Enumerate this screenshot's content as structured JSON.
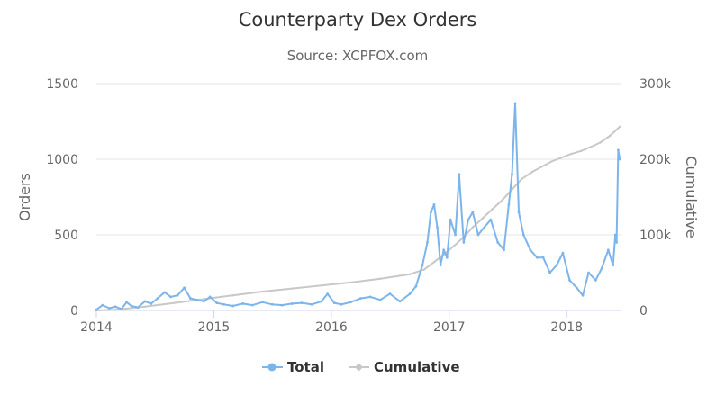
{
  "chart_data": {
    "type": "line",
    "title": "Counterparty Dex Orders",
    "subtitle": "Source: XCPFOX.com",
    "ylabel": "Orders",
    "y2label": "Cumulative",
    "ylim": [
      0,
      1500
    ],
    "y2lim": [
      0,
      300000
    ],
    "xlim": [
      "2014-01-01",
      "2018-06-20"
    ],
    "x_ticks": [
      "2014",
      "2015",
      "2016",
      "2017",
      "2018"
    ],
    "y_ticks": [
      "0",
      "500",
      "1000",
      "1500"
    ],
    "y2_ticks": [
      "0",
      "100k",
      "200k",
      "300k"
    ],
    "grid": true,
    "legend": {
      "position": "bottom-center",
      "items": [
        "Total",
        "Cumulative"
      ]
    },
    "colors": {
      "Total": "#7cb5ec",
      "Cumulative": "#c8c8c8"
    },
    "series": [
      {
        "name": "Total",
        "axis": "left",
        "x": [
          "2014-01-01",
          "2014-01-20",
          "2014-02-10",
          "2014-03-01",
          "2014-03-20",
          "2014-04-05",
          "2014-04-20",
          "2014-05-10",
          "2014-06-01",
          "2014-06-20",
          "2014-07-10",
          "2014-08-01",
          "2014-08-20",
          "2014-09-10",
          "2014-10-01",
          "2014-10-20",
          "2014-11-10",
          "2014-12-01",
          "2014-12-20",
          "2015-01-10",
          "2015-02-01",
          "2015-03-01",
          "2015-04-01",
          "2015-05-01",
          "2015-06-01",
          "2015-07-01",
          "2015-08-01",
          "2015-09-01",
          "2015-10-01",
          "2015-11-01",
          "2015-12-01",
          "2015-12-20",
          "2016-01-10",
          "2016-02-01",
          "2016-03-01",
          "2016-04-01",
          "2016-05-01",
          "2016-06-01",
          "2016-07-01",
          "2016-08-01",
          "2016-09-01",
          "2016-09-20",
          "2016-10-10",
          "2016-10-25",
          "2016-11-05",
          "2016-11-15",
          "2016-11-25",
          "2016-12-05",
          "2016-12-15",
          "2016-12-25",
          "2017-01-05",
          "2017-01-20",
          "2017-02-01",
          "2017-02-15",
          "2017-03-01",
          "2017-03-15",
          "2017-04-01",
          "2017-04-20",
          "2017-05-10",
          "2017-06-01",
          "2017-06-20",
          "2017-07-05",
          "2017-07-15",
          "2017-07-25",
          "2017-08-05",
          "2017-08-20",
          "2017-09-10",
          "2017-10-01",
          "2017-10-20",
          "2017-11-10",
          "2017-12-01",
          "2017-12-20",
          "2018-01-10",
          "2018-02-01",
          "2018-02-20",
          "2018-03-10",
          "2018-04-01",
          "2018-04-20",
          "2018-05-10",
          "2018-05-25",
          "2018-06-01",
          "2018-06-05",
          "2018-06-10",
          "2018-06-15"
        ],
        "values": [
          5,
          35,
          15,
          25,
          10,
          55,
          30,
          20,
          60,
          45,
          80,
          120,
          90,
          100,
          150,
          80,
          70,
          60,
          90,
          50,
          40,
          30,
          45,
          35,
          55,
          40,
          35,
          45,
          50,
          40,
          60,
          110,
          50,
          40,
          55,
          80,
          90,
          70,
          110,
          60,
          110,
          160,
          300,
          450,
          650,
          700,
          550,
          300,
          400,
          350,
          600,
          500,
          900,
          450,
          600,
          650,
          500,
          550,
          600,
          450,
          400,
          700,
          900,
          1370,
          650,
          500,
          400,
          350,
          350,
          250,
          300,
          380,
          200,
          150,
          100,
          250,
          200,
          280,
          400,
          300,
          500,
          450,
          1060,
          1000
        ]
      },
      {
        "name": "Cumulative",
        "axis": "right",
        "x": [
          "2014-01-01",
          "2014-03-01",
          "2014-06-01",
          "2014-09-01",
          "2014-12-01",
          "2015-03-01",
          "2015-06-01",
          "2015-09-01",
          "2015-12-01",
          "2016-03-01",
          "2016-06-01",
          "2016-09-01",
          "2016-10-15",
          "2016-11-15",
          "2016-12-15",
          "2017-01-15",
          "2017-02-15",
          "2017-03-15",
          "2017-04-15",
          "2017-05-15",
          "2017-06-15",
          "2017-07-15",
          "2017-08-15",
          "2017-09-15",
          "2017-10-15",
          "2017-11-15",
          "2017-12-15",
          "2018-01-15",
          "2018-02-15",
          "2018-03-15",
          "2018-04-15",
          "2018-05-15",
          "2018-06-15"
        ],
        "values": [
          0,
          1000,
          5000,
          10000,
          15000,
          20000,
          25000,
          29000,
          33000,
          37000,
          42000,
          48000,
          54000,
          64000,
          74000,
          85000,
          97000,
          110000,
          122000,
          134000,
          146000,
          160000,
          174000,
          183000,
          190000,
          197000,
          202000,
          207000,
          211000,
          216000,
          222000,
          231000,
          243000
        ]
      }
    ]
  }
}
